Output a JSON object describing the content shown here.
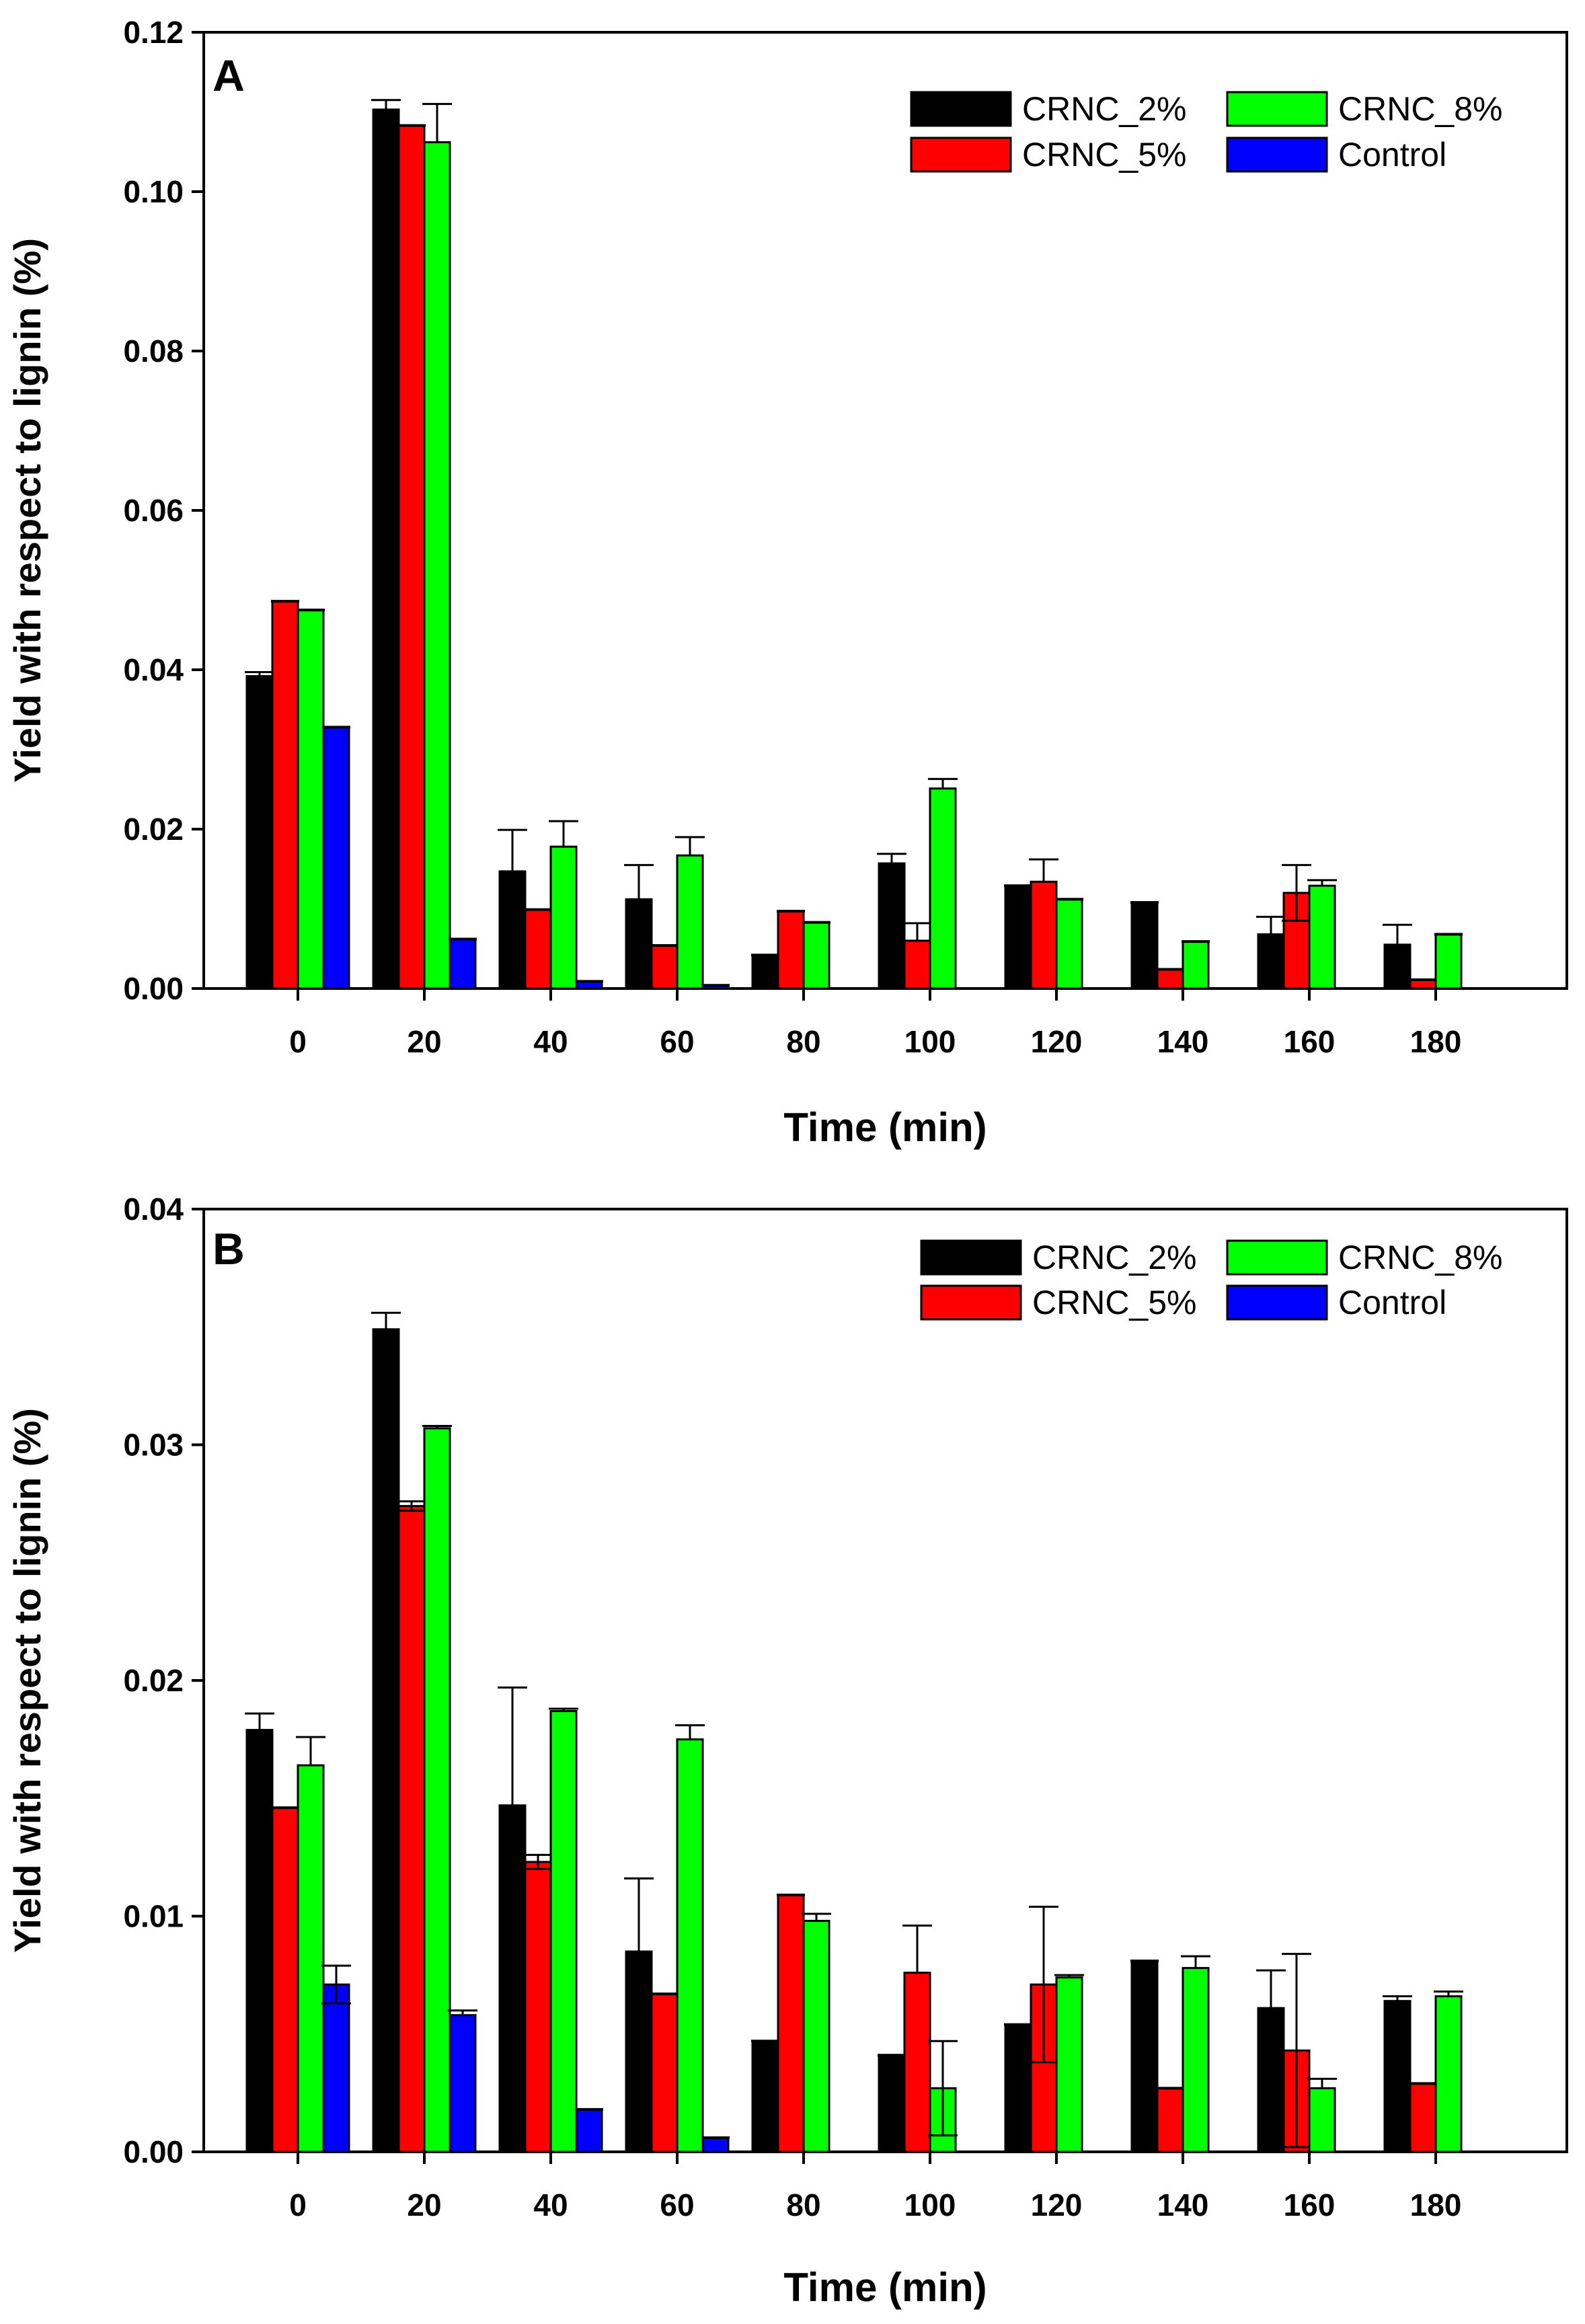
{
  "colors": {
    "CRNC_2%": "#000000",
    "CRNC_5%": "#ff0000",
    "CRNC_8%": "#00ff00",
    "Control": "#0000ff"
  },
  "chart_data": [
    {
      "type": "bar",
      "panel_label": "A",
      "title": "",
      "xlabel": "Time (min)",
      "ylabel": "Yield with respect to lignin (%)",
      "categories": [
        "0",
        "20",
        "40",
        "60",
        "80",
        "100",
        "120",
        "140",
        "160",
        "180"
      ],
      "ylim": [
        0,
        0.12
      ],
      "yticks": [
        "0.00",
        "0.02",
        "0.04",
        "0.06",
        "0.08",
        "0.10",
        "0.12"
      ],
      "legend": {
        "placement": "top-right",
        "columns": [
          [
            "CRNC_2%",
            "CRNC_5%"
          ],
          [
            "CRNC_8%",
            "Control"
          ]
        ]
      },
      "series": [
        {
          "name": "CRNC_2%",
          "values": [
            0.0392,
            0.1103,
            0.0147,
            0.0112,
            0.0042,
            0.0157,
            0.0129,
            0.0108,
            0.0068,
            0.0055
          ],
          "errors": [
            0.0005,
            0.0012,
            0.0052,
            0.0043,
            0.0,
            0.0012,
            0.0,
            0.0,
            0.0022,
            0.0025
          ]
        },
        {
          "name": "CRNC_5%",
          "values": [
            0.0486,
            0.1083,
            0.0099,
            0.0054,
            0.0097,
            0.006,
            0.0134,
            0.0024,
            0.012,
            0.0011
          ],
          "errors": [
            0.0,
            0.0,
            0.0,
            0.0,
            0.0,
            0.0022,
            0.0028,
            0.0,
            0.0035,
            0.0
          ],
          "lower_errors": [
            0.0,
            0.0,
            0.0,
            0.0,
            0.0,
            0.0,
            0.0,
            0.0,
            0.0035,
            0.0
          ]
        },
        {
          "name": "CRNC_8%",
          "values": [
            0.0475,
            0.1062,
            0.0178,
            0.0167,
            0.0083,
            0.0251,
            0.0112,
            0.0059,
            0.0129,
            0.0068
          ],
          "errors": [
            0.0,
            0.0048,
            0.0032,
            0.0023,
            0.0,
            0.0012,
            0.0,
            0.0,
            0.0007,
            0.0
          ],
          "lower_errors": [
            0.0,
            0.0,
            0.0,
            0.0,
            0.0,
            0.0,
            0.0,
            0.0,
            0.0,
            0.0
          ]
        },
        {
          "name": "Control",
          "values": [
            0.0328,
            0.0062,
            0.0009,
            0.0004,
            null,
            null,
            null,
            null,
            null,
            null
          ],
          "errors": [
            0,
            0,
            0,
            0,
            0,
            0,
            0,
            0,
            0,
            0
          ]
        }
      ]
    },
    {
      "type": "bar",
      "panel_label": "B",
      "title": "",
      "xlabel": "Time (min)",
      "ylabel": "Yield with respect to lignin (%)",
      "categories": [
        "0",
        "20",
        "40",
        "60",
        "80",
        "100",
        "120",
        "140",
        "160",
        "180"
      ],
      "ylim": [
        0,
        0.04
      ],
      "yticks": [
        "0.00",
        "0.01",
        "0.02",
        "0.03",
        "0.04"
      ],
      "legend": {
        "placement": "top-right",
        "columns": [
          [
            "CRNC_2%",
            "CRNC_5%"
          ],
          [
            "CRNC_8%",
            "Control"
          ]
        ]
      },
      "series": [
        {
          "name": "CRNC_2%",
          "values": [
            0.0179,
            0.0349,
            0.0147,
            0.0085,
            0.0047,
            0.0041,
            0.0054,
            0.0081,
            0.0061,
            0.0064
          ],
          "errors": [
            0.0007,
            0.0007,
            0.005,
            0.0031,
            0.0,
            0.0,
            0.0,
            0.0,
            0.0016,
            0.0002
          ]
        },
        {
          "name": "CRNC_5%",
          "values": [
            0.0146,
            0.0274,
            0.0123,
            0.0067,
            0.0109,
            0.0076,
            0.0071,
            0.0027,
            0.0043,
            0.0029
          ],
          "errors": [
            0.0,
            0.0002,
            0.0003,
            0.0,
            0.0,
            0.002,
            0.0033,
            0.0,
            0.0041,
            0.0
          ],
          "lower_errors": [
            0.0,
            0.0002,
            0.0003,
            0.0,
            0.0,
            0.0,
            0.0033,
            0.0,
            0.0041,
            0.0
          ]
        },
        {
          "name": "CRNC_8%",
          "values": [
            0.0164,
            0.0307,
            0.0187,
            0.0175,
            0.0098,
            0.0027,
            0.0074,
            0.0078,
            0.0027,
            0.0066
          ],
          "errors": [
            0.0012,
            0.0001,
            0.0001,
            0.0006,
            0.0003,
            0.002,
            0.0001,
            0.0005,
            0.0004,
            0.0002
          ],
          "lower_errors": [
            0.0,
            0.0,
            0.0,
            0.0,
            0.0,
            0.002,
            0.0,
            0.0,
            0.0,
            0.0
          ]
        },
        {
          "name": "Control",
          "values": [
            0.0071,
            0.0058,
            0.0018,
            0.0006,
            null,
            null,
            null,
            null,
            null,
            null
          ],
          "errors": [
            0.0008,
            0.0002,
            0,
            0,
            0,
            0,
            0,
            0,
            0,
            0
          ],
          "lower_errors": [
            0.0008,
            0.0,
            0,
            0,
            0,
            0,
            0,
            0,
            0,
            0
          ]
        }
      ]
    }
  ]
}
